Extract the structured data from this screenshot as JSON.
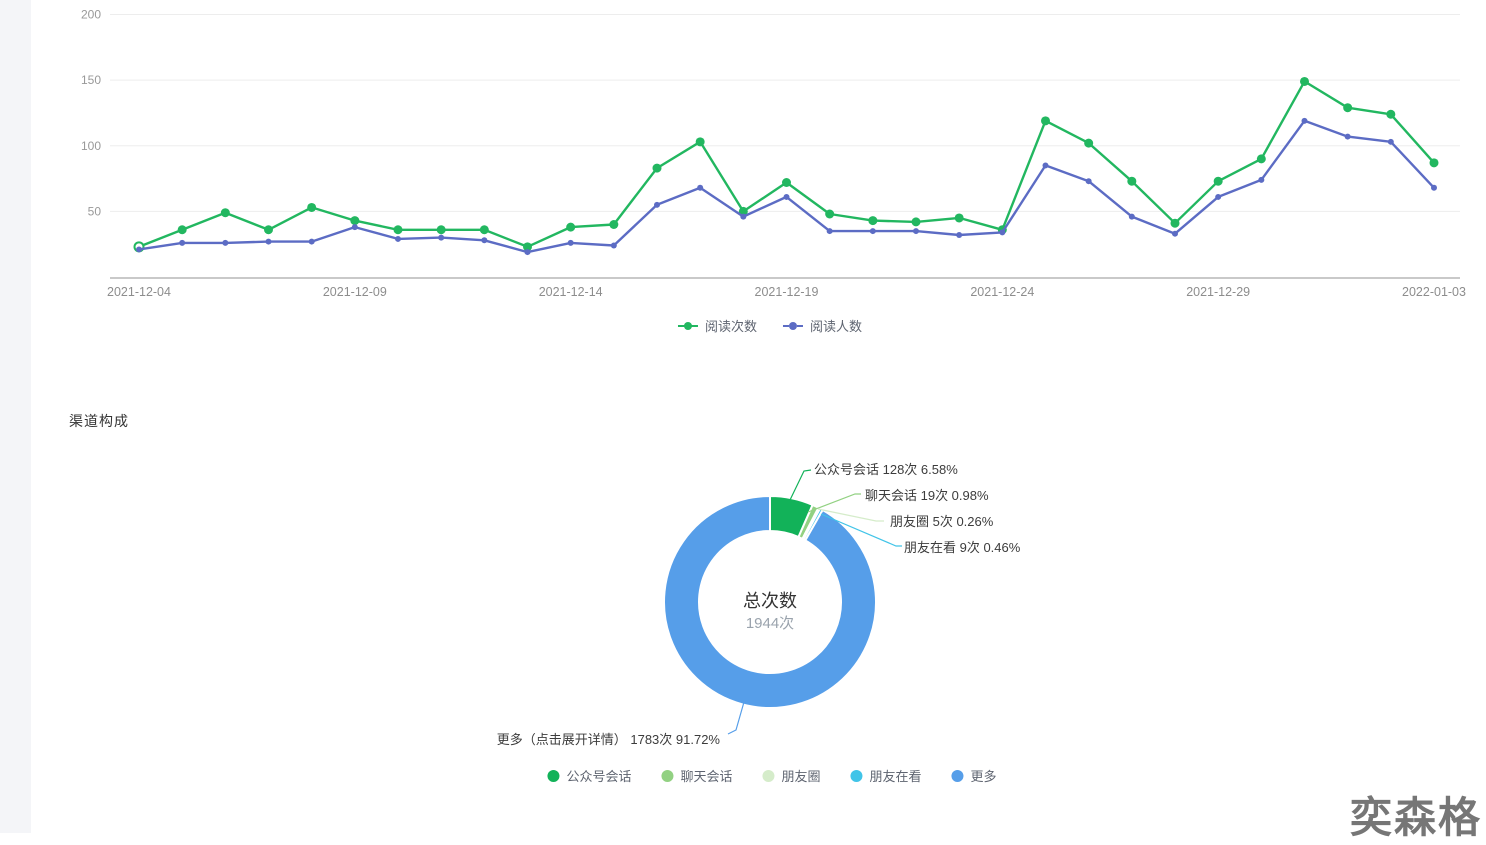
{
  "section_title": "渠道构成",
  "watermark": "奕森格",
  "unit_suffix": "次",
  "chart_data": [
    {
      "type": "line",
      "title": "",
      "xlabel": "",
      "ylabel": "",
      "ylim": [
        0,
        200
      ],
      "yticks": [
        50,
        100,
        150,
        200
      ],
      "grid": true,
      "legend_position": "bottom-center",
      "x": [
        "2021-12-04",
        "2021-12-05",
        "2021-12-06",
        "2021-12-07",
        "2021-12-08",
        "2021-12-09",
        "2021-12-10",
        "2021-12-11",
        "2021-12-12",
        "2021-12-13",
        "2021-12-14",
        "2021-12-15",
        "2021-12-16",
        "2021-12-17",
        "2021-12-18",
        "2021-12-19",
        "2021-12-20",
        "2021-12-21",
        "2021-12-22",
        "2021-12-23",
        "2021-12-24",
        "2021-12-25",
        "2021-12-26",
        "2021-12-27",
        "2021-12-28",
        "2021-12-29",
        "2021-12-30",
        "2021-12-31",
        "2022-01-01",
        "2022-01-02",
        "2022-01-03"
      ],
      "x_tick_labels": [
        "2021-12-04",
        "2021-12-09",
        "2021-12-14",
        "2021-12-19",
        "2021-12-24",
        "2021-12-29",
        "2022-01-03"
      ],
      "series": [
        {
          "name": "阅读次数",
          "color": "#22b760",
          "marker": "circle-solid",
          "values": [
            23,
            36,
            49,
            36,
            53,
            43,
            36,
            36,
            36,
            23,
            38,
            40,
            83,
            103,
            50,
            72,
            48,
            43,
            42,
            45,
            36,
            119,
            102,
            73,
            41,
            73,
            90,
            149,
            129,
            124,
            87
          ]
        },
        {
          "name": "阅读人数",
          "color": "#5c6cc4",
          "marker": "circle-small",
          "values": [
            21,
            26,
            26,
            27,
            27,
            38,
            29,
            30,
            28,
            19,
            26,
            24,
            55,
            68,
            46,
            61,
            35,
            35,
            35,
            32,
            34,
            85,
            73,
            46,
            33,
            61,
            74,
            119,
            107,
            103,
            68
          ]
        }
      ]
    },
    {
      "type": "pie",
      "subtype": "donut",
      "center_label": "总次数",
      "center_value": "1944次",
      "total": 1944,
      "legend_position": "bottom-center",
      "legend": [
        "公众号会话",
        "聊天会话",
        "朋友圈",
        "朋友在看",
        "更多"
      ],
      "slices": [
        {
          "label": "公众号会话",
          "count": 128,
          "count_label": "128次",
          "percent": 6.58,
          "percent_label": "6.58%",
          "color": "#12b259"
        },
        {
          "label": "聊天会话",
          "count": 19,
          "count_label": "19次",
          "percent": 0.98,
          "percent_label": "0.98%",
          "color": "#92d182"
        },
        {
          "label": "朋友圈",
          "count": 5,
          "count_label": "5次",
          "percent": 0.26,
          "percent_label": "0.26%",
          "color": "#d5ecca"
        },
        {
          "label": "朋友在看",
          "count": 9,
          "count_label": "9次",
          "percent": 0.46,
          "percent_label": "0.46%",
          "color": "#41c4e8"
        },
        {
          "label": "更多",
          "callout_name": "更多（点击展开详情）",
          "count": 1783,
          "count_label": "1783次",
          "percent": 91.72,
          "percent_label": "91.72%",
          "color": "#569ee9"
        }
      ]
    }
  ]
}
